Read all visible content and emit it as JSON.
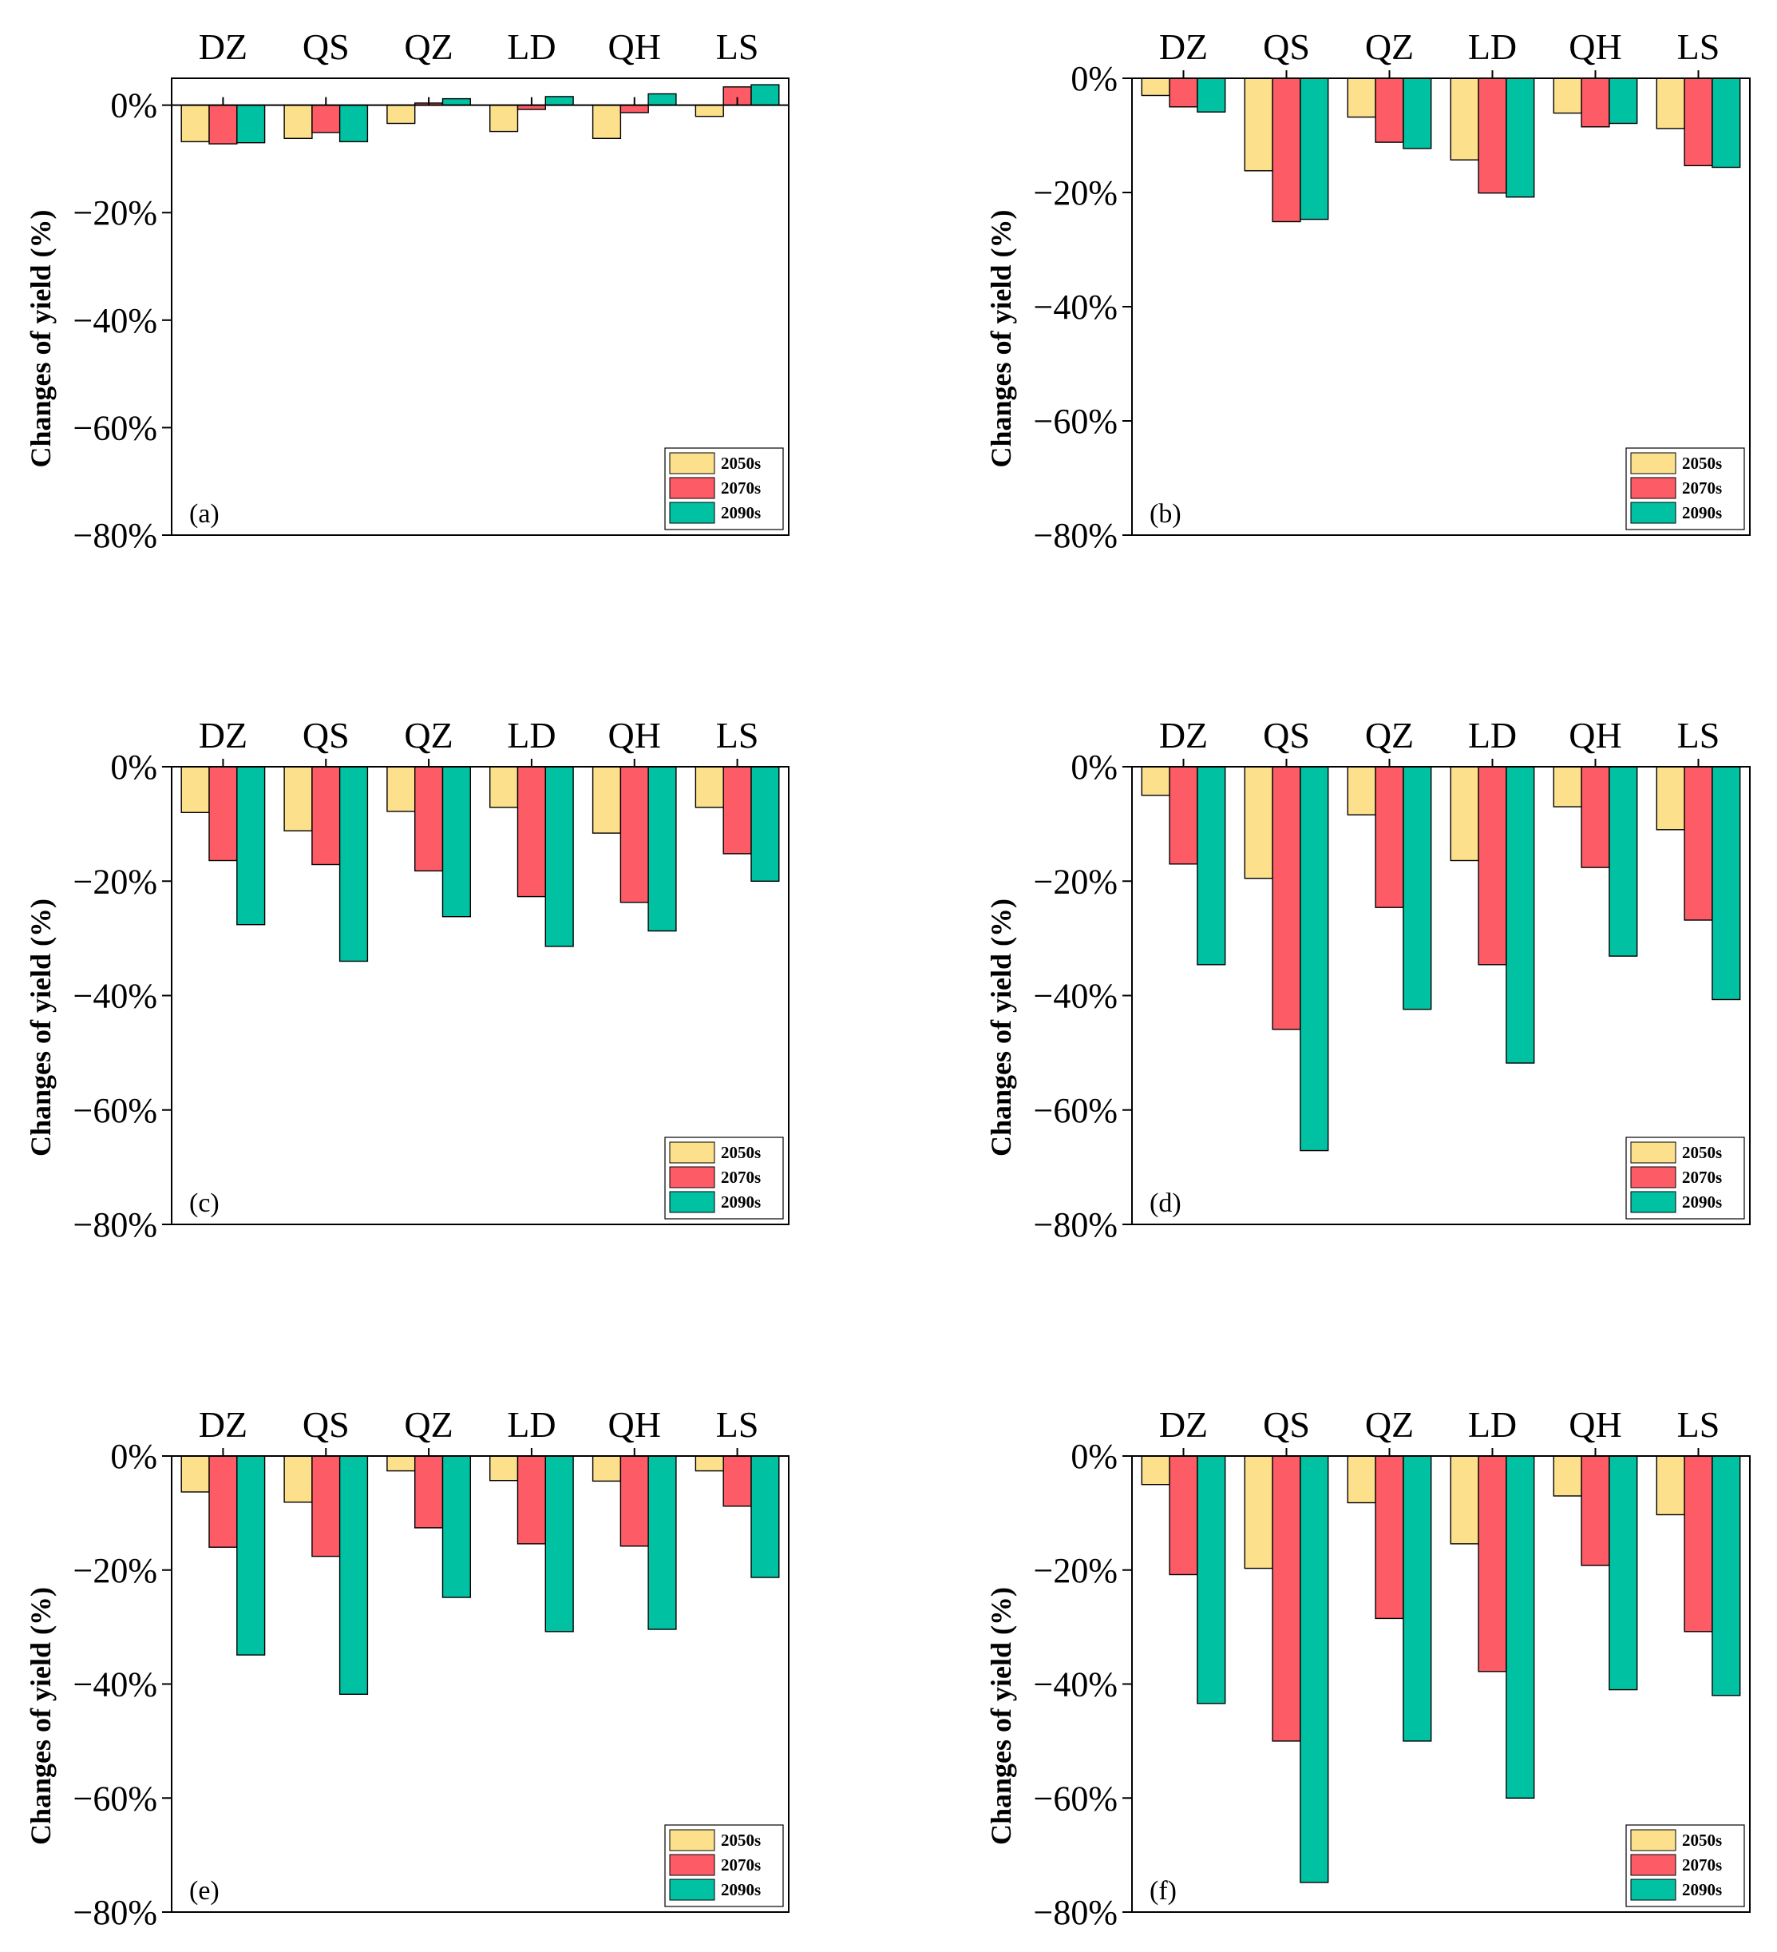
{
  "colors": {
    "s2050": "#FCE08C",
    "s2070": "#FD5C66",
    "s2090": "#00C2A3"
  },
  "chart_data": [
    {
      "panel": "(a)",
      "type": "bar",
      "categories": [
        "DZ",
        "QS",
        "QZ",
        "LD",
        "QH",
        "LS"
      ],
      "ylabel": "Changes of yield (%)",
      "yticks": [
        "0%",
        "−20%",
        "−40%",
        "−60%",
        "−80%"
      ],
      "ylim": [
        -80,
        5
      ],
      "series": [
        {
          "name": "2050s",
          "values": [
            -6.8,
            -6.2,
            -3.4,
            -4.9,
            -6.2,
            -2.1
          ]
        },
        {
          "name": "2070s",
          "values": [
            -7.2,
            -5.1,
            0.4,
            -0.8,
            -1.4,
            3.4
          ]
        },
        {
          "name": "2090s",
          "values": [
            -7.0,
            -6.8,
            1.2,
            1.6,
            2.1,
            3.8
          ]
        }
      ]
    },
    {
      "panel": "(b)",
      "type": "bar",
      "categories": [
        "DZ",
        "QS",
        "QZ",
        "LD",
        "QH",
        "LS"
      ],
      "ylabel": "Changes of yield (%)",
      "yticks": [
        "0%",
        "−20%",
        "−40%",
        "−60%",
        "−80%"
      ],
      "ylim": [
        -80,
        0
      ],
      "series": [
        {
          "name": "2050s",
          "values": [
            -3.0,
            -16.2,
            -6.8,
            -14.3,
            -6.1,
            -8.8
          ]
        },
        {
          "name": "2070s",
          "values": [
            -5.0,
            -25.1,
            -11.2,
            -20.1,
            -8.5,
            -15.3
          ]
        },
        {
          "name": "2090s",
          "values": [
            -5.9,
            -24.7,
            -12.3,
            -20.8,
            -7.9,
            -15.6
          ]
        }
      ]
    },
    {
      "panel": "(c)",
      "type": "bar",
      "categories": [
        "DZ",
        "QS",
        "QZ",
        "LD",
        "QH",
        "LS"
      ],
      "ylabel": "Changes of yield (%)",
      "yticks": [
        "0%",
        "−20%",
        "−40%",
        "−60%",
        "−80%"
      ],
      "ylim": [
        -80,
        0
      ],
      "series": [
        {
          "name": "2050s",
          "values": [
            -8.0,
            -11.2,
            -7.8,
            -7.1,
            -11.6,
            -7.1
          ]
        },
        {
          "name": "2070s",
          "values": [
            -16.4,
            -17.1,
            -18.2,
            -22.7,
            -23.7,
            -15.2
          ]
        },
        {
          "name": "2090s",
          "values": [
            -27.6,
            -34.0,
            -26.2,
            -31.4,
            -28.7,
            -20.0
          ]
        }
      ]
    },
    {
      "panel": "(d)",
      "type": "bar",
      "categories": [
        "DZ",
        "QS",
        "QZ",
        "LD",
        "QH",
        "LS"
      ],
      "ylabel": "Changes of yield (%)",
      "yticks": [
        "0%",
        "−20%",
        "−40%",
        "−60%",
        "−80%"
      ],
      "ylim": [
        -80,
        0
      ],
      "series": [
        {
          "name": "2050s",
          "values": [
            -5.0,
            -19.5,
            -8.4,
            -16.4,
            -7.0,
            -11.0
          ]
        },
        {
          "name": "2070s",
          "values": [
            -17.0,
            -45.9,
            -24.6,
            -34.6,
            -17.6,
            -26.8
          ]
        },
        {
          "name": "2090s",
          "values": [
            -34.6,
            -67.1,
            -42.4,
            -51.8,
            -33.1,
            -40.7
          ]
        }
      ]
    },
    {
      "panel": "(e)",
      "type": "bar",
      "categories": [
        "DZ",
        "QS",
        "QZ",
        "LD",
        "QH",
        "LS"
      ],
      "ylabel": "Changes of yield (%)",
      "yticks": [
        "0%",
        "−20%",
        "−40%",
        "−60%",
        "−80%"
      ],
      "ylim": [
        -80,
        0
      ],
      "series": [
        {
          "name": "2050s",
          "values": [
            -6.3,
            -8.1,
            -2.6,
            -4.3,
            -4.4,
            -2.6
          ]
        },
        {
          "name": "2070s",
          "values": [
            -16.0,
            -17.6,
            -12.6,
            -15.4,
            -15.8,
            -8.8
          ]
        },
        {
          "name": "2090s",
          "values": [
            -34.9,
            -41.8,
            -24.8,
            -30.8,
            -30.4,
            -21.3
          ]
        }
      ]
    },
    {
      "panel": "(f)",
      "type": "bar",
      "categories": [
        "DZ",
        "QS",
        "QZ",
        "LD",
        "QH",
        "LS"
      ],
      "ylabel": "Changes of yield (%)",
      "yticks": [
        "0%",
        "−20%",
        "−40%",
        "−60%",
        "−80%"
      ],
      "ylim": [
        -80,
        0
      ],
      "series": [
        {
          "name": "2050s",
          "values": [
            -5.0,
            -19.7,
            -8.2,
            -15.4,
            -7.0,
            -10.3
          ]
        },
        {
          "name": "2070s",
          "values": [
            -20.8,
            -50.0,
            -28.5,
            -37.8,
            -19.2,
            -30.8
          ]
        },
        {
          "name": "2090s",
          "values": [
            -43.4,
            -74.8,
            -50.0,
            -60.0,
            -41.0,
            -42.0
          ]
        }
      ]
    }
  ]
}
